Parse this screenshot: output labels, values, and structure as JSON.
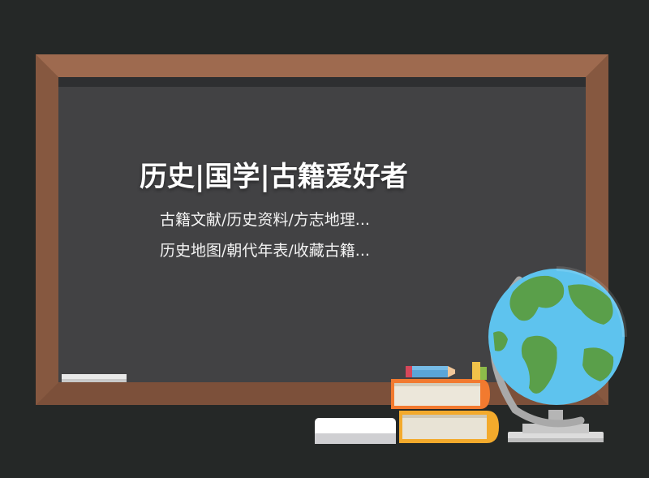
{
  "title": "历史|国学|古籍爱好者",
  "subtitles": [
    "古籍文献/历史资料/方志地理...",
    "历史地图/朝代年表/收藏古籍..."
  ],
  "colors": {
    "background": "#252827",
    "frame_wood": "#8f5e45",
    "board": "#424244",
    "text": "#ffffff"
  }
}
